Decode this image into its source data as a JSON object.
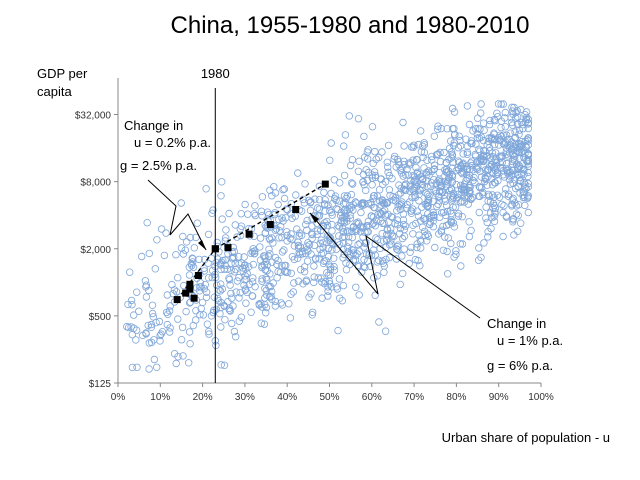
{
  "chart_data": {
    "type": "scatter",
    "title": "China, 1955-1980 and 1980-2010",
    "ylabel_lines": [
      "GDP per",
      "capita"
    ],
    "xlabel": "Urban share of population - u",
    "xlim": [
      0,
      1
    ],
    "ylim": [
      125,
      45000
    ],
    "y_scale": "log",
    "x_ticks": [
      0,
      0.1,
      0.2,
      0.3,
      0.4,
      0.5,
      0.6,
      0.7,
      0.8,
      0.9,
      1.0
    ],
    "x_tick_labels": [
      "0%",
      "10%",
      "20%",
      "30%",
      "40%",
      "50%",
      "60%",
      "70%",
      "80%",
      "90%",
      "100%"
    ],
    "y_ticks": [
      125,
      500,
      2000,
      8000,
      32000
    ],
    "y_tick_labels": [
      "$125",
      "$500",
      "$2,000",
      "$8,000",
      "$32,000"
    ],
    "grid": false,
    "vline": {
      "x": 0.23,
      "label": "1980"
    },
    "china_1955_1980": [
      {
        "x": 0.14,
        "y": 700
      },
      {
        "x": 0.16,
        "y": 800
      },
      {
        "x": 0.17,
        "y": 870
      },
      {
        "x": 0.17,
        "y": 960
      },
      {
        "x": 0.18,
        "y": 720
      },
      {
        "x": 0.19,
        "y": 1150
      },
      {
        "x": 0.23,
        "y": 2000
      }
    ],
    "china_1980_2010": [
      {
        "x": 0.23,
        "y": 2000
      },
      {
        "x": 0.26,
        "y": 2050
      },
      {
        "x": 0.31,
        "y": 2700
      },
      {
        "x": 0.36,
        "y": 3300
      },
      {
        "x": 0.42,
        "y": 4500
      },
      {
        "x": 0.49,
        "y": 7600
      }
    ],
    "annotations": {
      "left": {
        "lines": [
          "Change in",
          "u = 0.2% p.a.",
          "g = 2.5% p.a."
        ]
      },
      "right": {
        "lines": [
          "Change in",
          "u = 1% p.a.",
          "g = 6% p.a."
        ]
      }
    },
    "colors": {
      "cloud": "#7fa6d9",
      "markers": "#000000"
    },
    "cloud": {
      "count": 1500,
      "seed": 42
    }
  }
}
